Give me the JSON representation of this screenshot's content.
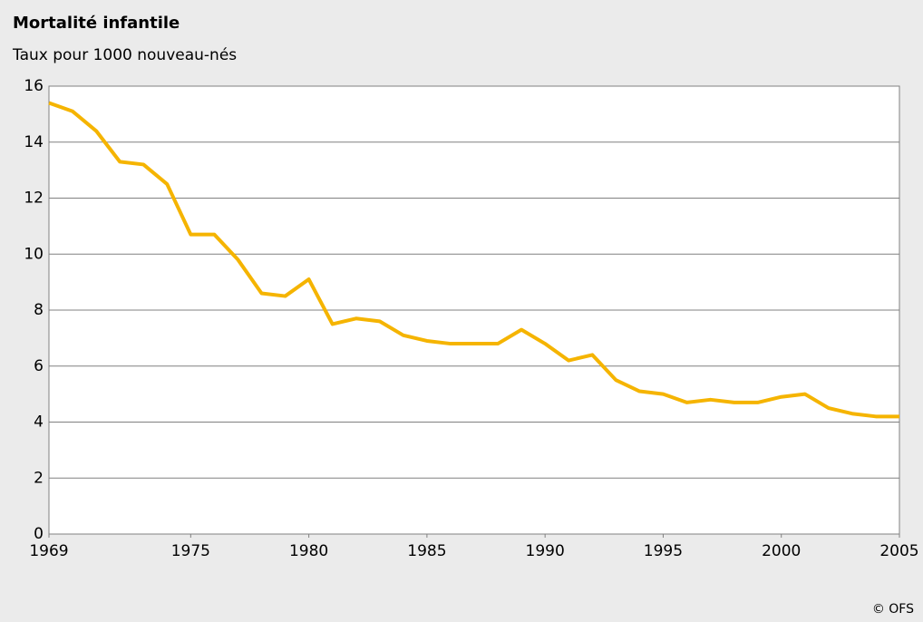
{
  "chart_data": {
    "type": "line",
    "title": "Mortalité infantile",
    "subtitle": "Taux pour 1000 nouveau-nés",
    "credit": "© OFS",
    "x": [
      1969,
      1970,
      1971,
      1972,
      1973,
      1974,
      1975,
      1976,
      1977,
      1978,
      1979,
      1980,
      1981,
      1982,
      1983,
      1984,
      1985,
      1986,
      1987,
      1988,
      1989,
      1990,
      1991,
      1992,
      1993,
      1994,
      1995,
      1996,
      1997,
      1998,
      1999,
      2000,
      2001,
      2002,
      2003,
      2004,
      2005
    ],
    "series": [
      {
        "name": "Mortalité infantile",
        "color": "#f5b400",
        "values": [
          15.4,
          15.1,
          14.4,
          13.3,
          13.2,
          12.5,
          10.7,
          10.7,
          9.8,
          8.6,
          8.5,
          9.1,
          7.5,
          7.7,
          7.6,
          7.1,
          6.9,
          6.8,
          6.8,
          6.8,
          7.3,
          6.8,
          6.2,
          6.4,
          5.5,
          5.1,
          5.0,
          4.7,
          4.8,
          4.7,
          4.7,
          4.9,
          5.0,
          4.5,
          4.3,
          4.2,
          4.2
        ]
      }
    ],
    "xlim": [
      1969,
      2005
    ],
    "xticks": [
      1969,
      1975,
      1980,
      1985,
      1990,
      1995,
      2000,
      2005
    ],
    "ylim": [
      0,
      16
    ],
    "yticks": [
      0,
      2,
      4,
      6,
      8,
      10,
      12,
      14,
      16
    ],
    "grid": true
  }
}
